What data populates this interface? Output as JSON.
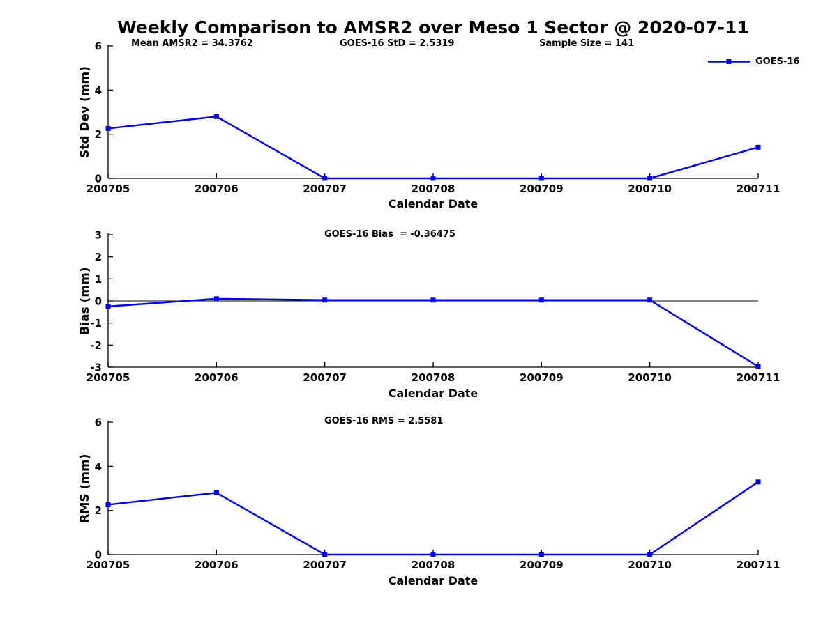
{
  "title": "Weekly Comparison to AMSR2 over Meso 1 Sector @ 2020-07-11",
  "legend": {
    "label": "GOES-16",
    "marker": "square"
  },
  "colors": {
    "line": "#0000EE",
    "axis": "#000000",
    "text": "#000000",
    "background": "#FFFFFF"
  },
  "chart_data": [
    {
      "type": "line",
      "name": "std-dev-subplot",
      "annotations": [
        "Mean AMSR2 = 34.3762",
        "GOES-16 StD = 2.5319",
        "Sample Size = 141"
      ],
      "categories": [
        "200705",
        "200706",
        "200707",
        "200708",
        "200709",
        "200710",
        "200711"
      ],
      "series": [
        {
          "name": "GOES-16",
          "values": [
            2.26,
            2.8,
            0.0,
            0.0,
            0.0,
            0.0,
            1.41
          ]
        }
      ],
      "ylabel": "Std Dev (mm)",
      "xlabel": "Calendar Date",
      "ylim": [
        0,
        6
      ],
      "yticks": [
        0,
        2,
        4,
        6
      ],
      "zero_line": false,
      "grid": false,
      "legend_position": "top-right-outside"
    },
    {
      "type": "line",
      "name": "bias-subplot",
      "annotations": [
        "GOES-16 Bias  = -0.36475"
      ],
      "categories": [
        "200705",
        "200706",
        "200707",
        "200708",
        "200709",
        "200710",
        "200711"
      ],
      "series": [
        {
          "name": "GOES-16",
          "values": [
            -0.25,
            0.1,
            0.04,
            0.04,
            0.04,
            0.04,
            -2.97
          ]
        }
      ],
      "ylabel": "Bias (mm)",
      "xlabel": "Calendar Date",
      "ylim": [
        -3,
        3
      ],
      "yticks": [
        -3,
        -2,
        -1,
        0,
        1,
        2,
        3
      ],
      "zero_line": true,
      "grid": false
    },
    {
      "type": "line",
      "name": "rms-subplot",
      "annotations": [
        "GOES-16 RMS = 2.5581"
      ],
      "categories": [
        "200705",
        "200706",
        "200707",
        "200708",
        "200709",
        "200710",
        "200711"
      ],
      "series": [
        {
          "name": "GOES-16",
          "values": [
            2.26,
            2.8,
            0.0,
            0.0,
            0.0,
            0.0,
            3.29
          ]
        }
      ],
      "ylabel": "RMS (mm)",
      "xlabel": "Calendar Date",
      "ylim": [
        0,
        6
      ],
      "yticks": [
        0,
        2,
        4,
        6
      ],
      "zero_line": false,
      "grid": false
    }
  ]
}
